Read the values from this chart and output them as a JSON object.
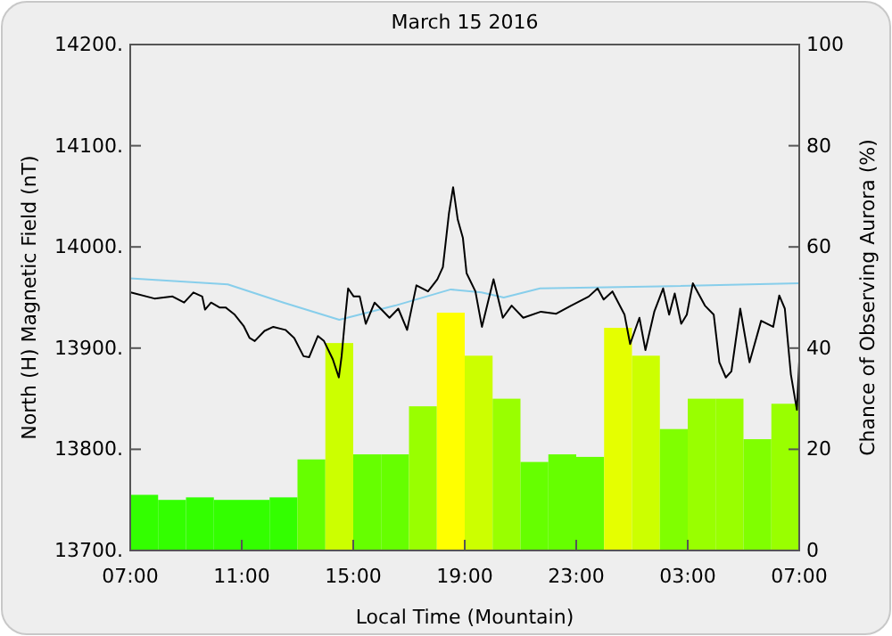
{
  "chart_data": {
    "type": "line",
    "title": "March 15 2016",
    "xlabel": "Local Time (Mountain)",
    "ylabel": "North (H) Magnetic Field (nT)",
    "y2label": "Chance of Observing Aurora (%)",
    "xlim": [
      "2016-03-15T07:00",
      "2016-03-16T07:00"
    ],
    "xticks": [
      {
        "value": "2016-03-15T07:00",
        "label": "07:00"
      },
      {
        "value": "2016-03-15T11:00",
        "label": "11:00"
      },
      {
        "value": "2016-03-15T15:00",
        "label": "15:00"
      },
      {
        "value": "2016-03-15T19:00",
        "label": "19:00"
      },
      {
        "value": "2016-03-15T23:00",
        "label": "23:00"
      },
      {
        "value": "2016-03-16T03:00",
        "label": "03:00"
      },
      {
        "value": "2016-03-16T07:00",
        "label": "07:00"
      }
    ],
    "ylim": [
      13700,
      14200
    ],
    "yticks": [
      {
        "value": 13700,
        "label": "13700."
      },
      {
        "value": 13800,
        "label": "13800."
      },
      {
        "value": 13900,
        "label": "13900."
      },
      {
        "value": 14000,
        "label": "14000."
      },
      {
        "value": 14100,
        "label": "14100."
      },
      {
        "value": 14200,
        "label": "14200."
      }
    ],
    "y2lim": [
      0,
      100
    ],
    "y2ticks": [
      0,
      20,
      40,
      60,
      80,
      100
    ],
    "grid": false,
    "series": [
      {
        "type": "bar",
        "axis": "y2",
        "x": [
          "2016-03-15T07:30",
          "2016-03-15T08:30",
          "2016-03-15T09:30",
          "2016-03-15T10:30",
          "2016-03-15T11:30",
          "2016-03-15T12:30",
          "2016-03-15T13:30",
          "2016-03-15T14:30",
          "2016-03-15T15:30",
          "2016-03-15T16:30",
          "2016-03-15T17:30",
          "2016-03-15T18:30",
          "2016-03-15T19:30",
          "2016-03-15T20:30",
          "2016-03-15T21:30",
          "2016-03-15T22:30",
          "2016-03-15T23:30",
          "2016-03-16T00:30",
          "2016-03-16T01:30",
          "2016-03-16T02:30",
          "2016-03-16T03:30",
          "2016-03-16T04:30",
          "2016-03-16T05:30",
          "2016-03-16T06:30"
        ],
        "values": [
          11,
          10,
          10.5,
          10,
          10,
          10.5,
          18,
          41,
          19,
          19,
          28.5,
          47,
          38.5,
          30,
          17.5,
          19,
          18.5,
          44,
          38.5,
          24,
          30,
          30,
          22,
          29
        ],
        "colors": [
          "#33ff00",
          "#33ff00",
          "#33ff00",
          "#33ff00",
          "#33ff00",
          "#33ff00",
          "#66ff00",
          "#ccff00",
          "#66ff00",
          "#66ff00",
          "#99ff00",
          "#ffff00",
          "#ccff00",
          "#99ff00",
          "#66ff00",
          "#66ff00",
          "#66ff00",
          "#e5ff00",
          "#ccff00",
          "#80ff00",
          "#99ff00",
          "#99ff00",
          "#80ff00",
          "#99ff00"
        ]
      },
      {
        "color": "#87ceeb",
        "x": [
          "2016-03-15T07:00",
          "2016-03-15T10:30",
          "2016-03-15T12:30",
          "2016-03-15T14:30",
          "2016-03-15T16:30",
          "2016-03-15T18:30",
          "2016-03-15T19:36",
          "2016-03-15T20:24",
          "2016-03-15T21:42",
          "2016-03-16T02:00",
          "2016-03-16T07:00"
        ],
        "values": [
          13969,
          13963,
          13945,
          13928,
          13942,
          13958,
          13955,
          13950,
          13959,
          13961,
          13964
        ]
      },
      {
        "color": "#000000",
        "x": [
          "2016-03-15T07:01",
          "2016-03-15T07:52",
          "2016-03-15T08:31",
          "2016-03-15T08:56",
          "2016-03-15T09:16",
          "2016-03-15T09:35",
          "2016-03-15T09:41",
          "2016-03-15T09:54",
          "2016-03-15T10:13",
          "2016-03-15T10:26",
          "2016-03-15T10:45",
          "2016-03-15T11:04",
          "2016-03-15T11:17",
          "2016-03-15T11:28",
          "2016-03-15T11:49",
          "2016-03-15T12:08",
          "2016-03-15T12:34",
          "2016-03-15T12:53",
          "2016-03-15T13:13",
          "2016-03-15T13:25",
          "2016-03-15T13:44",
          "2016-03-15T13:57",
          "2016-03-15T14:16",
          "2016-03-15T14:29",
          "2016-03-15T14:35",
          "2016-03-15T14:42",
          "2016-03-15T14:49",
          "2016-03-15T15:01",
          "2016-03-15T15:14",
          "2016-03-15T15:27",
          "2016-03-15T15:46",
          "2016-03-15T15:59",
          "2016-03-15T16:18",
          "2016-03-15T16:37",
          "2016-03-15T16:56",
          "2016-03-15T17:16",
          "2016-03-15T17:41",
          "2016-03-15T18:01",
          "2016-03-15T18:13",
          "2016-03-15T18:26",
          "2016-03-15T18:35",
          "2016-03-15T18:45",
          "2016-03-15T18:56",
          "2016-03-15T19:04",
          "2016-03-15T19:23",
          "2016-03-15T19:37",
          "2016-03-15T20:02",
          "2016-03-15T20:22",
          "2016-03-15T20:41",
          "2016-03-15T21:06",
          "2016-03-15T21:44",
          "2016-03-15T22:17",
          "2016-03-15T22:49",
          "2016-03-15T23:27",
          "2016-03-15T23:46",
          "2016-03-15T23:59",
          "2016-03-16T00:18",
          "2016-03-16T00:44",
          "2016-03-16T00:56",
          "2016-03-16T01:16",
          "2016-03-16T01:29",
          "2016-03-16T01:48",
          "2016-03-16T02:07",
          "2016-03-16T02:20",
          "2016-03-16T02:32",
          "2016-03-16T02:46",
          "2016-03-16T02:58",
          "2016-03-16T03:11",
          "2016-03-16T03:37",
          "2016-03-16T03:56",
          "2016-03-16T04:08",
          "2016-03-16T04:22",
          "2016-03-16T04:34",
          "2016-03-16T04:53",
          "2016-03-16T05:13",
          "2016-03-16T05:38",
          "2016-03-16T06:04",
          "2016-03-16T06:17",
          "2016-03-16T06:29",
          "2016-03-16T06:42",
          "2016-03-16T06:55",
          "2016-03-16T07:00"
        ],
        "values": [
          13955,
          13949,
          13951,
          13945,
          13955,
          13951,
          13938,
          13945,
          13940,
          13940,
          13933,
          13922,
          13910,
          13907,
          13917,
          13921,
          13918,
          13910,
          13892,
          13891,
          13912,
          13907,
          13889,
          13871,
          13892,
          13927,
          13959,
          13951,
          13951,
          13924,
          13945,
          13939,
          13930,
          13939,
          13918,
          13962,
          13956,
          13968,
          13980,
          14033,
          14059,
          14027,
          14009,
          13974,
          13956,
          13921,
          13968,
          13930,
          13942,
          13930,
          13936,
          13934,
          13942,
          13951,
          13959,
          13948,
          13956,
          13933,
          13904,
          13930,
          13898,
          13936,
          13959,
          13933,
          13954,
          13924,
          13933,
          13964,
          13942,
          13933,
          13886,
          13871,
          13877,
          13939,
          13886,
          13927,
          13921,
          13952,
          13939,
          13874,
          13839,
          13887
        ]
      }
    ]
  }
}
